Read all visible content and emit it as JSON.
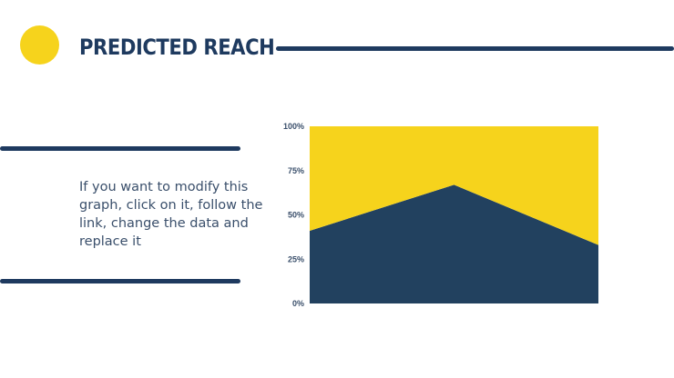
{
  "slide": {
    "title": "PREDICTED REACH",
    "body": "If you want to modify this graph, click on it, follow the link, change the data and replace it"
  },
  "colors": {
    "accent_yellow": "#f6d31c",
    "navy": "#1e3a5f",
    "area_navy": "#22415f",
    "text": "#3a4f6b"
  },
  "chart_data": {
    "type": "area",
    "stacked_percent": true,
    "x": [
      1,
      2,
      3
    ],
    "ylim": [
      0,
      100
    ],
    "yticks": [
      0,
      25,
      50,
      75,
      100
    ],
    "ytick_labels": [
      "0%",
      "25%",
      "50%",
      "75%",
      "100%"
    ],
    "series": [
      {
        "color": "#22415f",
        "values": [
          41,
          67,
          33
        ]
      },
      {
        "color": "#f6d31c",
        "values": [
          59,
          33,
          67
        ]
      }
    ],
    "grid": false,
    "legend": "none"
  }
}
